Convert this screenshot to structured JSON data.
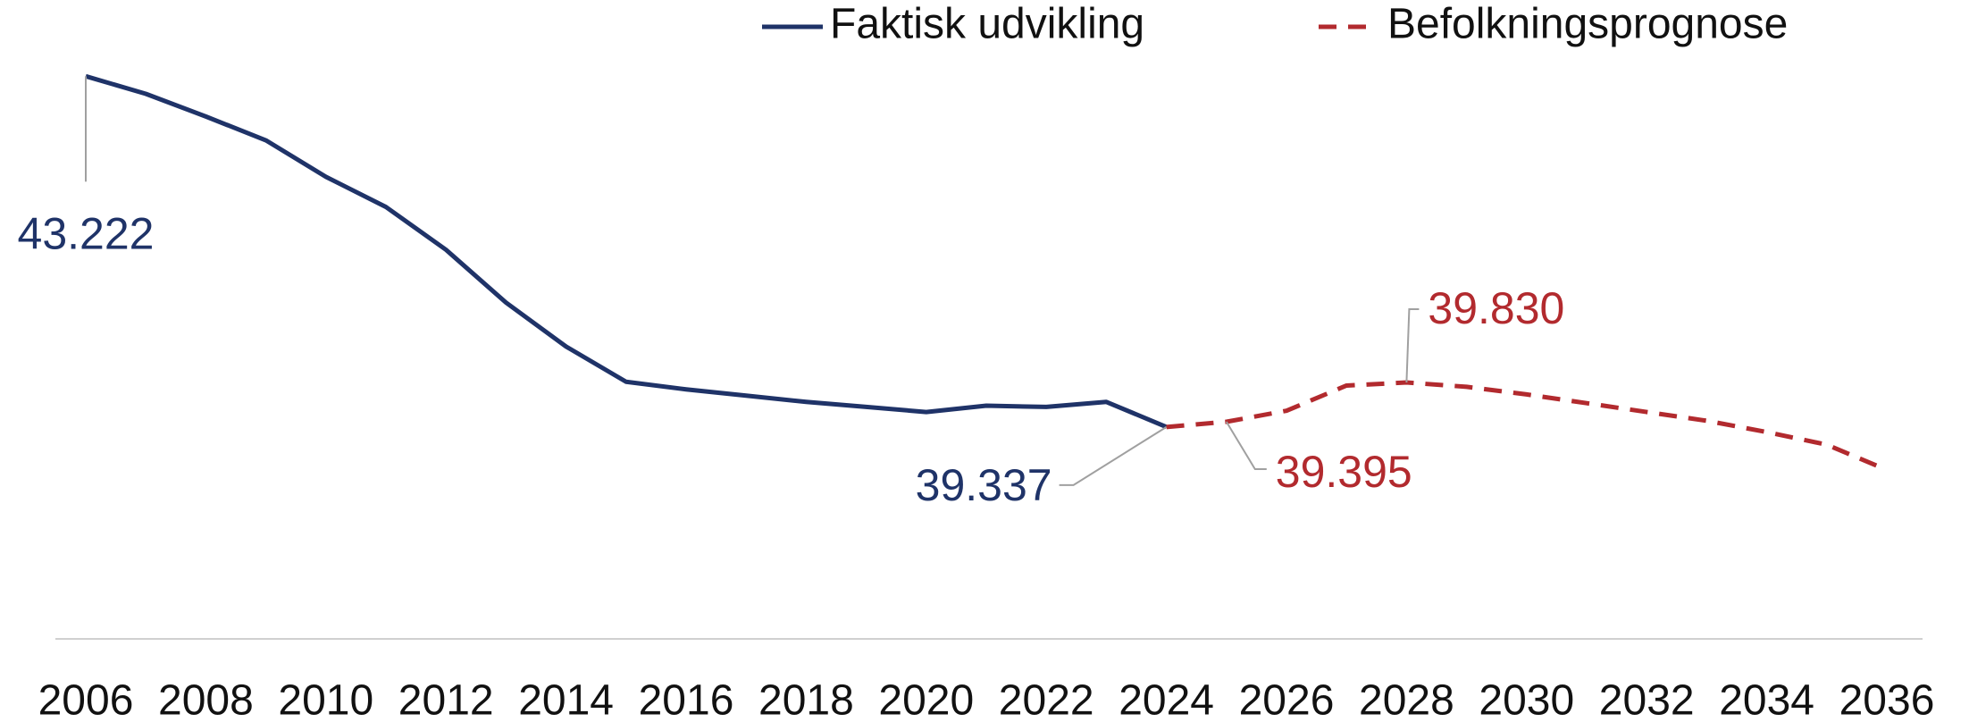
{
  "chart_data": {
    "type": "line",
    "x": [
      2006,
      2007,
      2008,
      2009,
      2010,
      2011,
      2012,
      2013,
      2014,
      2015,
      2016,
      2017,
      2018,
      2019,
      2020,
      2021,
      2022,
      2023,
      2024,
      2025,
      2026,
      2027,
      2028,
      2029,
      2030,
      2031,
      2032,
      2033,
      2034,
      2035,
      2036
    ],
    "xlim": [
      2006,
      2036
    ],
    "xticks": [
      2006,
      2008,
      2010,
      2012,
      2014,
      2016,
      2018,
      2020,
      2022,
      2024,
      2026,
      2028,
      2030,
      2032,
      2034,
      2036
    ],
    "ylim": [
      37000,
      43700
    ],
    "legend": "top",
    "series": [
      {
        "name": "Faktisk udvikling",
        "color": "#1f3368",
        "dash": false,
        "values": [
          43222,
          43027,
          42776,
          42512,
          42108,
          41774,
          41300,
          40715,
          40228,
          39838,
          39754,
          39684,
          39615,
          39559,
          39503,
          39573,
          39559,
          39615,
          39337,
          null,
          null,
          null,
          null,
          null,
          null,
          null,
          null,
          null,
          null,
          null,
          null
        ],
        "value_labels": [
          "43.222",
          null,
          null,
          null,
          null,
          null,
          null,
          null,
          null,
          null,
          null,
          null,
          null,
          null,
          null,
          null,
          null,
          null,
          "39.337",
          null,
          null,
          null,
          null,
          null,
          null,
          null,
          null,
          null,
          null,
          null,
          null
        ]
      },
      {
        "name": "Befolkningsprognose",
        "color": "#b22a2e",
        "dash": true,
        "values": [
          null,
          null,
          null,
          null,
          null,
          null,
          null,
          null,
          null,
          null,
          null,
          null,
          null,
          null,
          null,
          null,
          null,
          null,
          39337,
          39395,
          39517,
          39796,
          39830,
          39782,
          39698,
          39601,
          39503,
          39406,
          39281,
          39141,
          38862
        ],
        "value_labels": [
          null,
          null,
          null,
          null,
          null,
          null,
          null,
          null,
          null,
          null,
          null,
          null,
          null,
          null,
          null,
          null,
          null,
          null,
          null,
          "39.395",
          null,
          null,
          "39.830",
          null,
          null,
          null,
          null,
          null,
          null,
          null,
          null
        ]
      }
    ]
  }
}
